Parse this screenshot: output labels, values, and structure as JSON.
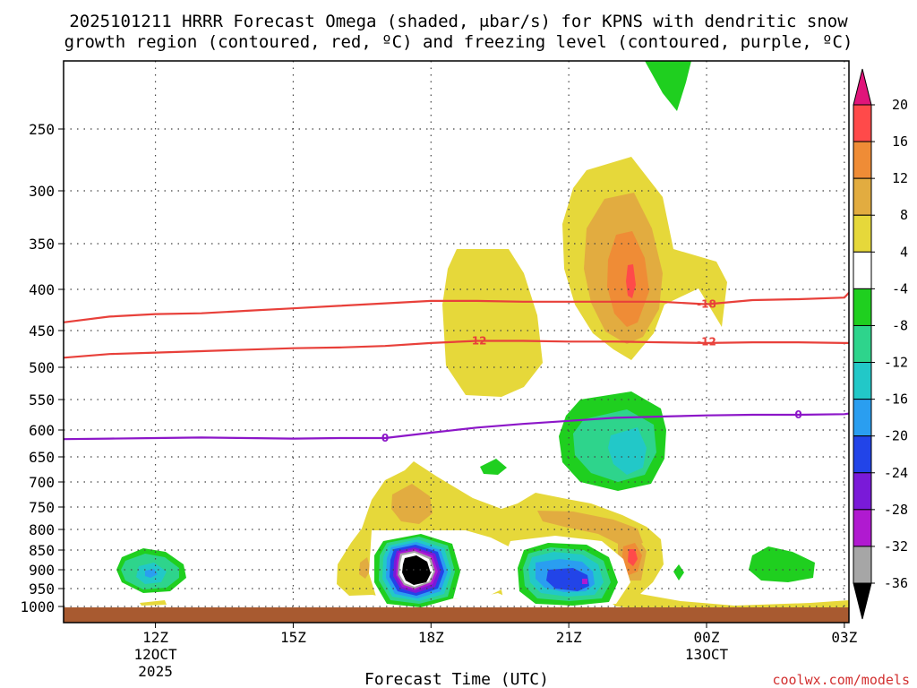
{
  "chart_data": {
    "type": "time-height cross-section (contour)",
    "title_line1": "2025101211 HRRR Forecast Omega (shaded, μbar/s) for KPNS with dendritic snow",
    "title_line2": "growth region (contoured, red, ºC) and freezing level (contoured, purple, ºC)",
    "xlabel": "Forecast Time (UTC)",
    "credit": "coolwx.com/models",
    "xlim_hours": [
      10.0,
      27.1
    ],
    "x_ticks": [
      {
        "hour": 12,
        "label": "12Z",
        "sub1": "12OCT",
        "sub2": "2025"
      },
      {
        "hour": 15,
        "label": "15Z",
        "sub1": "",
        "sub2": ""
      },
      {
        "hour": 18,
        "label": "18Z",
        "sub1": "",
        "sub2": ""
      },
      {
        "hour": 21,
        "label": "21Z",
        "sub1": "",
        "sub2": ""
      },
      {
        "hour": 24,
        "label": "00Z",
        "sub1": "13OCT",
        "sub2": ""
      },
      {
        "hour": 27,
        "label": "03Z",
        "sub1": "",
        "sub2": ""
      }
    ],
    "y_axis": "pressure (hPa)",
    "y_ticks": [
      250,
      300,
      350,
      400,
      450,
      500,
      550,
      600,
      650,
      700,
      750,
      800,
      850,
      900,
      950,
      1000
    ],
    "ground_pressure": 1010,
    "colorbar": {
      "tick_labels": [
        "20",
        "16",
        "12",
        "8",
        "4",
        "-4",
        "-8",
        "-12",
        "-16",
        "-20",
        "-24",
        "-28",
        "-32",
        "-36"
      ],
      "top_color": "#e0157a",
      "bottom_color": "#000000",
      "bins": [
        {
          "label": "16 to 20",
          "color": "#ff4a4a"
        },
        {
          "label": "12 to 16",
          "color": "#ef8c36"
        },
        {
          "label": "8 to 12",
          "color": "#e2ac40"
        },
        {
          "label": "4 to 8",
          "color": "#e6d83a"
        },
        {
          "label": "-4 to 4",
          "color": "#ffffff"
        },
        {
          "label": "-8 to -4",
          "color": "#1fcf1f"
        },
        {
          "label": "-12 to -8",
          "color": "#2ed48c"
        },
        {
          "label": "-16 to -12",
          "color": "#22c8c8"
        },
        {
          "label": "-20 to -16",
          "color": "#2a9ef0"
        },
        {
          "label": "-24 to -20",
          "color": "#2244e8"
        },
        {
          "label": "-28 to -24",
          "color": "#7a1ad8"
        },
        {
          "label": "-32 to -28",
          "color": "#b01ad0"
        },
        {
          "label": "-36 to -32",
          "color": "#a6a6a6"
        }
      ]
    },
    "contour_lines": [
      {
        "name": "dgz -18C",
        "label": "-18",
        "color": "#e8403a",
        "points": [
          [
            10.0,
            440
          ],
          [
            11,
            433
          ],
          [
            12,
            430
          ],
          [
            13,
            429
          ],
          [
            14,
            426
          ],
          [
            15,
            423
          ],
          [
            16,
            420
          ],
          [
            17,
            417
          ],
          [
            18,
            414
          ],
          [
            19,
            414
          ],
          [
            20,
            415
          ],
          [
            21,
            415
          ],
          [
            22,
            415
          ],
          [
            23,
            415
          ],
          [
            24,
            418
          ],
          [
            25,
            413
          ],
          [
            26,
            412
          ],
          [
            27,
            410
          ],
          [
            27.1,
            404
          ]
        ],
        "label_at": [
          24,
          418
        ]
      },
      {
        "name": "dgz -12C",
        "label": "-12",
        "color": "#e8403a",
        "points": [
          [
            10.0,
            487
          ],
          [
            11,
            482
          ],
          [
            12,
            480
          ],
          [
            13,
            478
          ],
          [
            14,
            476
          ],
          [
            15,
            474
          ],
          [
            16,
            473
          ],
          [
            17,
            471
          ],
          [
            18,
            467
          ],
          [
            19,
            464
          ],
          [
            20,
            464
          ],
          [
            21,
            465
          ],
          [
            22,
            465
          ],
          [
            23,
            466
          ],
          [
            24,
            467
          ],
          [
            25,
            466
          ],
          [
            26,
            466
          ],
          [
            27,
            467
          ],
          [
            27.1,
            467
          ]
        ],
        "label_at": [
          19,
          464
        ]
      },
      {
        "name": "freezing level 0C",
        "label": "0",
        "color": "#8c16c8",
        "points": [
          [
            10.0,
            617
          ],
          [
            11,
            616
          ],
          [
            12,
            615
          ],
          [
            13,
            614
          ],
          [
            14,
            615
          ],
          [
            15,
            616
          ],
          [
            16,
            615
          ],
          [
            17,
            615
          ],
          [
            18,
            605
          ],
          [
            19,
            596
          ],
          [
            20,
            590
          ],
          [
            21,
            585
          ],
          [
            22,
            580
          ],
          [
            23,
            578
          ],
          [
            24,
            576
          ],
          [
            25,
            575
          ],
          [
            26,
            575
          ],
          [
            27,
            574
          ],
          [
            27.1,
            573
          ]
        ],
        "label_at": [
          17,
          615
        ]
      }
    ]
  }
}
